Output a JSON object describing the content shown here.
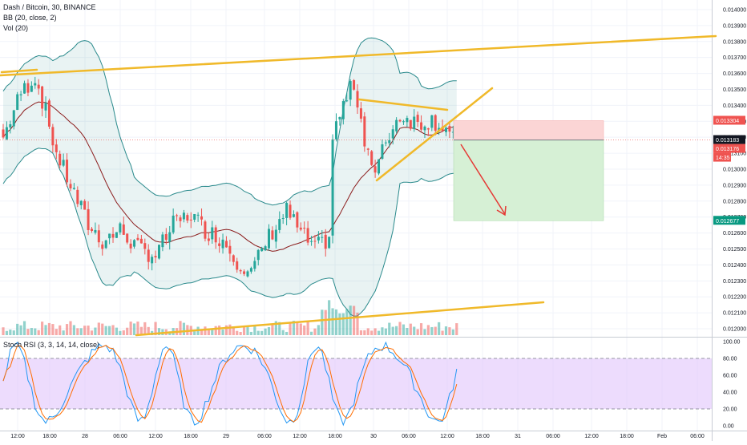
{
  "chart_data": {
    "type": "candlestick",
    "title": "Dash / Bitcoin, 30, BINANCE",
    "indicators": [
      "BB (20, close, 2)",
      "Vol (20)"
    ],
    "oscillator": "Stoch RSI (3, 3, 14, 14, close)",
    "y_ticks": [
      "0.014000",
      "0.013900",
      "0.013800",
      "0.013700",
      "0.013600",
      "0.013500",
      "0.013400",
      "0.013300",
      "0.013200",
      "0.013100",
      "0.013000",
      "0.012900",
      "0.012800",
      "0.012700",
      "0.012600",
      "0.012500",
      "0.012400",
      "0.012300",
      "0.012200",
      "0.012100",
      "0.012000"
    ],
    "y_range": [
      0.01195,
      0.01406
    ],
    "osc_ticks": [
      "100.00",
      "80.00",
      "60.00",
      "40.00",
      "20.00",
      "0.00"
    ],
    "osc_band": [
      20,
      80
    ],
    "x_ticks": [
      "12:00",
      "18:00",
      "28",
      "06:00",
      "12:00",
      "18:00",
      "29",
      "06:00",
      "12:00",
      "18:00",
      "30",
      "06:00",
      "12:00",
      "18:00",
      "31",
      "06:00",
      "12:00",
      "18:00",
      "Feb",
      "06:00"
    ],
    "price_labels": [
      {
        "text": "0.013304",
        "value": 0.013304,
        "color": "#ef5350"
      },
      {
        "text": "0.013183",
        "value": 0.013183,
        "color": "#131722"
      },
      {
        "text": "0.013176",
        "value": 0.013176,
        "color": "#ef5350"
      },
      {
        "text": "14:35",
        "value": 0.01312,
        "color": "#ef5350"
      },
      {
        "text": "0.012677",
        "value": 0.012677,
        "color": "#089981"
      }
    ],
    "position": {
      "entry": 0.013183,
      "stop": 0.013304,
      "target": 0.012677
    },
    "colors": {
      "up": "#26a69a",
      "down": "#ef5350",
      "trendline": "#f0b92a",
      "bb_band": "#2a8a8c",
      "bb_basis": "#8b1c1c",
      "stoch_k": "#2196f3",
      "stoch_d": "#ff6d00",
      "osc_band_fill": "#e1c4fc",
      "stop_zone": "#fbd5d5",
      "target_zone": "#d6f0d5",
      "arrow": "#e53935"
    }
  }
}
